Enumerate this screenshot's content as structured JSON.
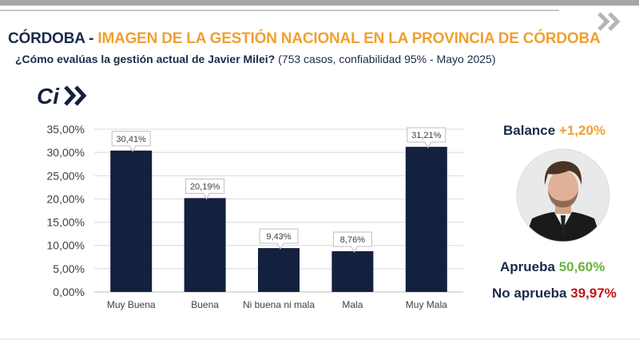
{
  "header": {
    "title_prefix": "CÓRDOBA -",
    "title_rest": "IMAGEN DE LA GESTIÓN NACIONAL EN LA PROVINCIA DE CÓRDOBA",
    "question": "¿Cómo evalúas la gestión actual de Javier Milei?",
    "question_detail": "(753 casos, confiabilidad 95% - Mayo 2025)"
  },
  "logo": {
    "text": "Ci"
  },
  "summary": {
    "balance_label": "Balance",
    "balance_value": "+1,20%",
    "approve_label": "Aprueba",
    "approve_value": "50,60%",
    "disapprove_label": "No aprueba",
    "disapprove_value": "39,97%"
  },
  "colors": {
    "bar": "#13213f",
    "navy_text": "#1b2a4a",
    "orange": "#f0a030",
    "green": "#6cb33f",
    "red": "#c0161b"
  },
  "icons": [
    "chevron-double-right-icon",
    "ci-logo",
    "person-photo"
  ],
  "chart_data": {
    "type": "bar",
    "categories": [
      "Muy Buena",
      "Buena",
      "Ni buena ni mala",
      "Mala",
      "Muy Mala"
    ],
    "values": [
      30.41,
      20.19,
      9.43,
      8.76,
      31.21
    ],
    "data_labels": [
      "30,41%",
      "20,19%",
      "9,43%",
      "8,76%",
      "31,21%"
    ],
    "y_ticks": [
      0,
      5,
      10,
      15,
      20,
      25,
      30,
      35
    ],
    "y_tick_labels": [
      "0,00%",
      "5,00%",
      "10,00%",
      "15,00%",
      "20,00%",
      "25,00%",
      "30,00%",
      "35,00%"
    ],
    "ylim": [
      0,
      35
    ],
    "grid": true,
    "xlabel": "",
    "ylabel": ""
  }
}
